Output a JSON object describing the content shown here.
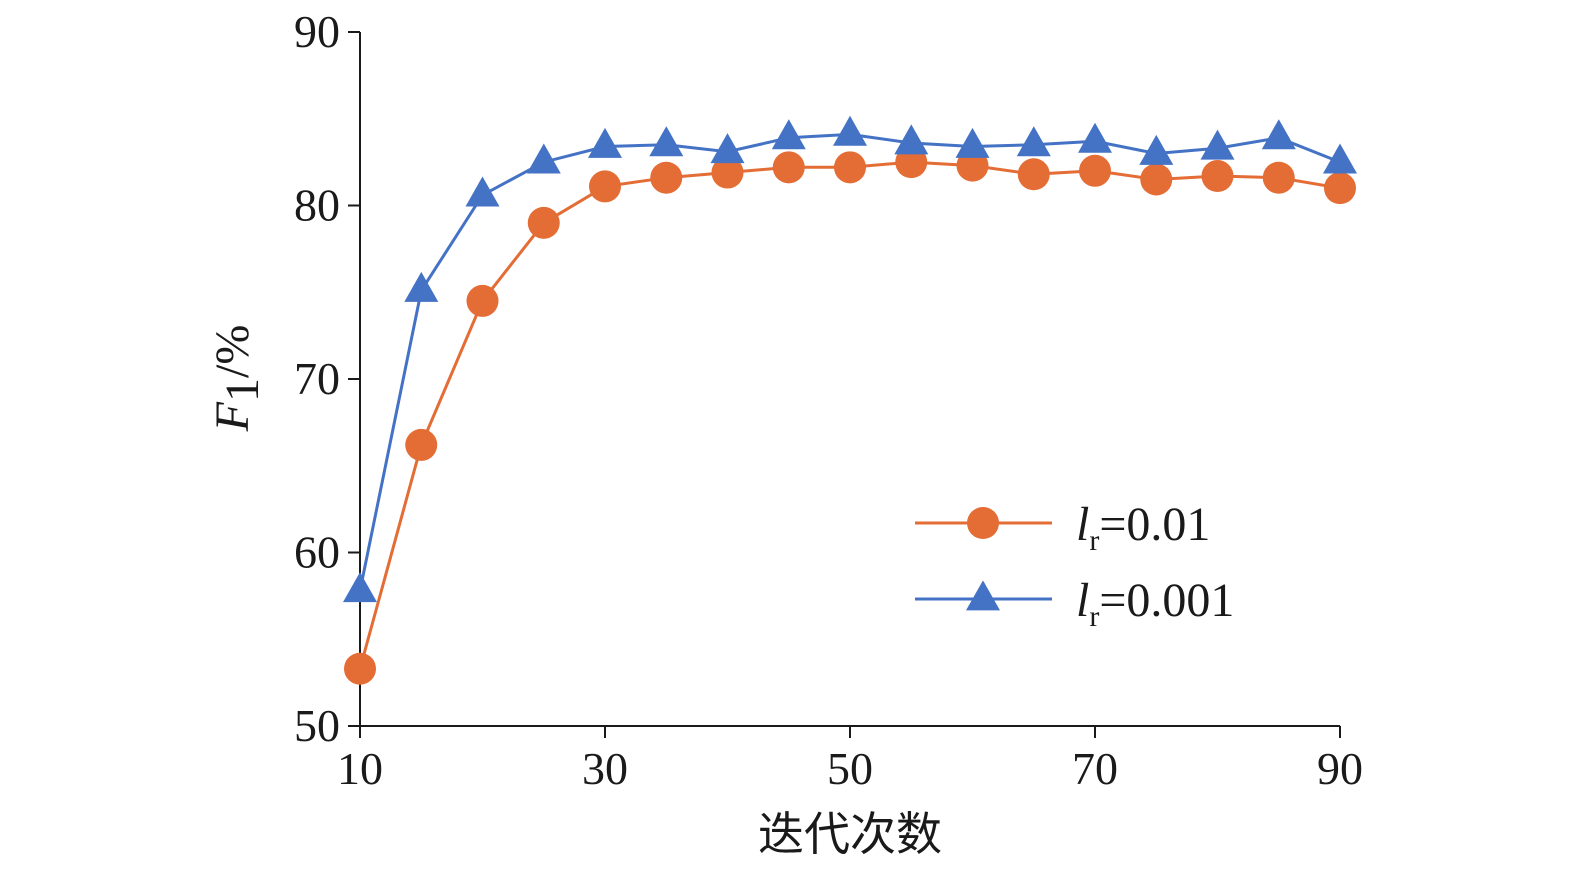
{
  "chart_data": {
    "type": "line",
    "title": "",
    "xlabel": "迭代次数",
    "ylabel": {
      "main": "F",
      "sub": "1",
      "suffix": "/%"
    },
    "x": [
      10,
      15,
      20,
      25,
      30,
      35,
      40,
      45,
      50,
      55,
      60,
      65,
      70,
      75,
      80,
      85,
      90
    ],
    "xlim": [
      10,
      90
    ],
    "ylim": [
      50,
      90
    ],
    "xticks": [
      10,
      30,
      50,
      70,
      90
    ],
    "yticks": [
      50,
      60,
      70,
      80,
      90
    ],
    "grid": false,
    "legend_position": "lower-right",
    "series": [
      {
        "name": "lr=0.01",
        "legend": {
          "base": "l",
          "sub": "r",
          "value": "=0.01"
        },
        "marker": "circle",
        "color": "#E46C35",
        "values": [
          53.3,
          66.2,
          74.5,
          79.0,
          81.1,
          81.6,
          81.9,
          82.2,
          82.2,
          82.5,
          82.3,
          81.8,
          82.0,
          81.5,
          81.7,
          81.6,
          81.0
        ]
      },
      {
        "name": "lr=0.001",
        "legend": {
          "base": "l",
          "sub": "r",
          "value": "=0.001"
        },
        "marker": "triangle",
        "color": "#4472C4",
        "values": [
          57.8,
          75.1,
          80.6,
          82.5,
          83.4,
          83.5,
          83.1,
          83.9,
          84.1,
          83.6,
          83.4,
          83.5,
          83.7,
          83.0,
          83.3,
          83.9,
          82.5
        ]
      }
    ]
  }
}
